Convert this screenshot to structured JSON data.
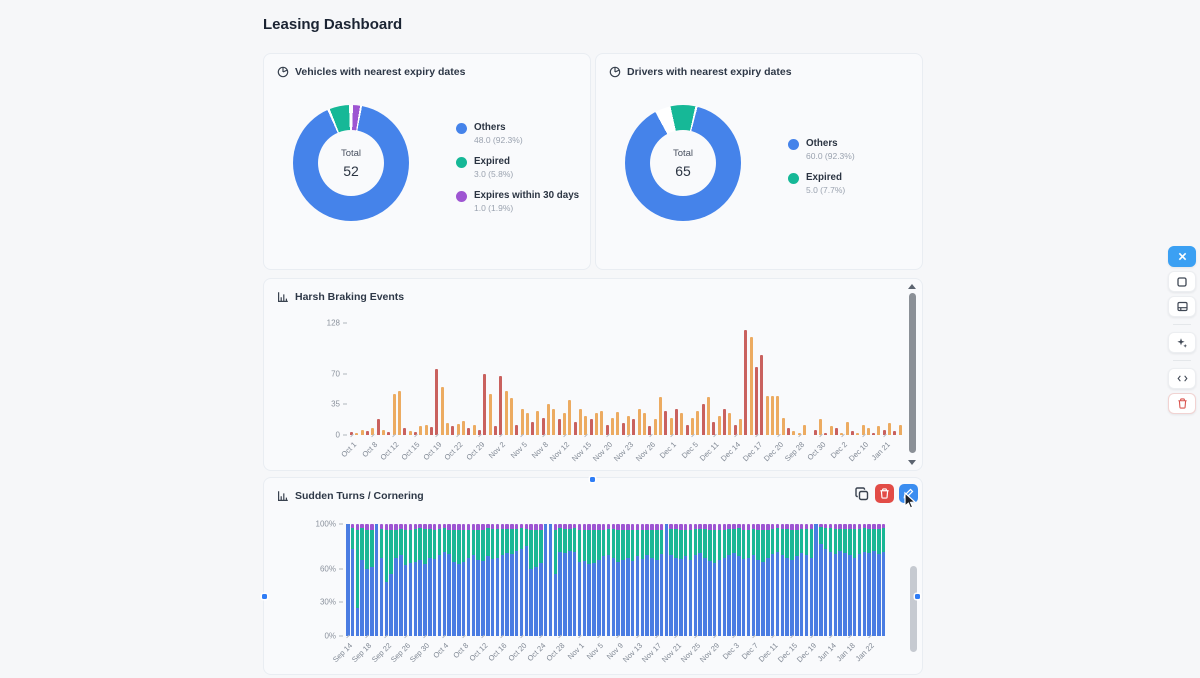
{
  "page": {
    "title": "Leasing Dashboard"
  },
  "cards": {
    "vehicles": {
      "title": "Vehicles with nearest expiry dates",
      "chart_data": {
        "type": "pie",
        "total_label": "Total",
        "total": "52",
        "slices": [
          {
            "label": "Others",
            "value": 48.0,
            "pct": 92.3,
            "value_text": "48.0 (92.3%)",
            "color": "#4583ea"
          },
          {
            "label": "Expired",
            "value": 3.0,
            "pct": 5.8,
            "value_text": "3.0 (5.8%)",
            "color": "#16b897"
          },
          {
            "label": "Expires within 30 days",
            "value": 1.0,
            "pct": 1.9,
            "value_text": "1.0 (1.9%)",
            "color": "#9e55d2"
          }
        ],
        "from_deg": 0,
        "segments": [
          {
            "color": "#9e55d2",
            "a0": 2,
            "a1": 9
          },
          {
            "color": "#4583ea",
            "a0": 11,
            "a1": 336
          },
          {
            "color": "#16b897",
            "a0": 338.5,
            "a1": 358
          }
        ]
      }
    },
    "drivers": {
      "title": "Drivers with nearest expiry dates",
      "chart_data": {
        "type": "pie",
        "total_label": "Total",
        "total": "65",
        "slices": [
          {
            "label": "Others",
            "value": 60.0,
            "pct": 92.3,
            "value_text": "60.0 (92.3%)",
            "color": "#4583ea"
          },
          {
            "label": "Expired",
            "value": 5.0,
            "pct": 7.7,
            "value_text": "5.0 (7.7%)",
            "color": "#16b897"
          }
        ],
        "from_deg": -14,
        "segments": [
          {
            "color": "#16b897",
            "a0": 1.5,
            "a1": 26.3
          },
          {
            "color": "#4583ea",
            "a0": 28.5,
            "a1": 345.5
          }
        ]
      }
    },
    "harsh_braking": {
      "title": "Harsh Braking Events",
      "chart_data": {
        "type": "bar",
        "ymax": 128,
        "yticks": [
          {
            "v": 0,
            "label": "0"
          },
          {
            "v": 35,
            "label": "35"
          },
          {
            "v": 70,
            "label": "70"
          },
          {
            "v": 128,
            "label": "128"
          }
        ],
        "colors": [
          "#c9615e",
          "#ecab61"
        ],
        "color_names": [
          "red",
          "orange"
        ],
        "label_every": 4,
        "labels": [
          "Oct 1",
          "Oct 8",
          "Oct 12",
          "Oct 15",
          "Oct 19",
          "Oct 22",
          "Oct 29",
          "Nov 2",
          "Nov 5",
          "Nov 8",
          "Nov 12",
          "Nov 15",
          "Nov 20",
          "Nov 23",
          "Nov 26",
          "Dec 1",
          "Dec 5",
          "Dec 11",
          "Dec 14",
          "Dec 17",
          "Dec 20",
          "Sep 28",
          "Oct 30",
          "Dec 2",
          "Dec 10",
          "Jan 21"
        ],
        "bars": [
          [
            4,
            0
          ],
          [
            2,
            1
          ],
          [
            6,
            1
          ],
          [
            5,
            0
          ],
          [
            8,
            1
          ],
          [
            18,
            0
          ],
          [
            6,
            1
          ],
          [
            4,
            0
          ],
          [
            47,
            1
          ],
          [
            50,
            1
          ],
          [
            8,
            0
          ],
          [
            5,
            1
          ],
          [
            3,
            0
          ],
          [
            10,
            1
          ],
          [
            12,
            1
          ],
          [
            9,
            0
          ],
          [
            75,
            0
          ],
          [
            55,
            1
          ],
          [
            14,
            1
          ],
          [
            10,
            0
          ],
          [
            13,
            1
          ],
          [
            16,
            1
          ],
          [
            8,
            0
          ],
          [
            12,
            1
          ],
          [
            6,
            0
          ],
          [
            70,
            0
          ],
          [
            47,
            1
          ],
          [
            10,
            0
          ],
          [
            68,
            0
          ],
          [
            50,
            1
          ],
          [
            42,
            1
          ],
          [
            12,
            0
          ],
          [
            30,
            1
          ],
          [
            25,
            1
          ],
          [
            15,
            0
          ],
          [
            28,
            1
          ],
          [
            20,
            0
          ],
          [
            35,
            1
          ],
          [
            30,
            1
          ],
          [
            18,
            0
          ],
          [
            25,
            1
          ],
          [
            40,
            1
          ],
          [
            15,
            0
          ],
          [
            30,
            1
          ],
          [
            22,
            1
          ],
          [
            18,
            0
          ],
          [
            25,
            1
          ],
          [
            28,
            1
          ],
          [
            12,
            0
          ],
          [
            20,
            1
          ],
          [
            26,
            1
          ],
          [
            14,
            0
          ],
          [
            22,
            1
          ],
          [
            18,
            0
          ],
          [
            30,
            1
          ],
          [
            25,
            1
          ],
          [
            10,
            0
          ],
          [
            18,
            1
          ],
          [
            44,
            1
          ],
          [
            28,
            0
          ],
          [
            20,
            1
          ],
          [
            30,
            0
          ],
          [
            25,
            1
          ],
          [
            12,
            0
          ],
          [
            20,
            1
          ],
          [
            28,
            1
          ],
          [
            35,
            0
          ],
          [
            44,
            1
          ],
          [
            15,
            0
          ],
          [
            22,
            1
          ],
          [
            30,
            0
          ],
          [
            25,
            1
          ],
          [
            12,
            0
          ],
          [
            18,
            1
          ],
          [
            120,
            0
          ],
          [
            112,
            1
          ],
          [
            78,
            0
          ],
          [
            92,
            0
          ],
          [
            45,
            1
          ],
          [
            45,
            1
          ],
          [
            45,
            1
          ],
          [
            20,
            1
          ],
          [
            8,
            0
          ],
          [
            5,
            1
          ],
          [
            2,
            1
          ],
          [
            12,
            1
          ],
          [
            0,
            1
          ],
          [
            6,
            0
          ],
          [
            18,
            1
          ],
          [
            2,
            0
          ],
          [
            10,
            1
          ],
          [
            8,
            0
          ],
          [
            2,
            1
          ],
          [
            15,
            1
          ],
          [
            5,
            0
          ],
          [
            2,
            1
          ],
          [
            12,
            1
          ],
          [
            8,
            1
          ],
          [
            2,
            0
          ],
          [
            10,
            1
          ],
          [
            6,
            0
          ],
          [
            14,
            1
          ],
          [
            5,
            0
          ],
          [
            12,
            1
          ]
        ]
      }
    },
    "sudden_turns": {
      "title": "Sudden Turns / Cornering",
      "chart_data": {
        "type": "stacked-bar-100",
        "ymax": 100,
        "yticks": [
          {
            "v": 0,
            "label": "0%"
          },
          {
            "v": 30,
            "label": "30%"
          },
          {
            "v": 60,
            "label": "60%"
          },
          {
            "v": 100,
            "label": "100%"
          }
        ],
        "colors": [
          "#4a7ce2",
          "#19b795",
          "#9e55d2"
        ],
        "color_names": [
          "blue",
          "teal",
          "purple"
        ],
        "label_every": 4,
        "labels": [
          "Sep 14",
          "Sep 18",
          "Sep 22",
          "Sep 26",
          "Sep 30",
          "Oct 4",
          "Oct 8",
          "Oct 12",
          "Oct 16",
          "Oct 20",
          "Oct 24",
          "Oct 28",
          "Nov 1",
          "Nov 5",
          "Nov 9",
          "Nov 13",
          "Nov 17",
          "Nov 21",
          "Nov 25",
          "Nov 29",
          "Dec 3",
          "Dec 7",
          "Dec 11",
          "Dec 15",
          "Dec 19",
          "Jun 14",
          "Jan 18",
          "Jan 22"
        ],
        "bars": [
          [
            100,
            0,
            0
          ],
          [
            78,
            18,
            4
          ],
          [
            25,
            70,
            5
          ],
          [
            68,
            28,
            4
          ],
          [
            60,
            35,
            5
          ],
          [
            62,
            33,
            5
          ],
          [
            100,
            0,
            0
          ],
          [
            70,
            26,
            4
          ],
          [
            48,
            47,
            5
          ],
          [
            55,
            40,
            5
          ],
          [
            70,
            25,
            5
          ],
          [
            72,
            24,
            4
          ],
          [
            63,
            32,
            5
          ],
          [
            65,
            30,
            5
          ],
          [
            66,
            30,
            4
          ],
          [
            68,
            28,
            4
          ],
          [
            64,
            32,
            4
          ],
          [
            70,
            26,
            4
          ],
          [
            69,
            26,
            5
          ],
          [
            72,
            24,
            4
          ],
          [
            75,
            21,
            4
          ],
          [
            73,
            22,
            5
          ],
          [
            66,
            29,
            5
          ],
          [
            64,
            31,
            5
          ],
          [
            66,
            29,
            5
          ],
          [
            70,
            25,
            5
          ],
          [
            72,
            23,
            5
          ],
          [
            68,
            27,
            5
          ],
          [
            67,
            28,
            5
          ],
          [
            71,
            25,
            4
          ],
          [
            69,
            27,
            4
          ],
          [
            70,
            26,
            4
          ],
          [
            72,
            24,
            4
          ],
          [
            74,
            22,
            4
          ],
          [
            73,
            23,
            4
          ],
          [
            76,
            20,
            4
          ],
          [
            78,
            18,
            4
          ],
          [
            80,
            16,
            4
          ],
          [
            60,
            35,
            5
          ],
          [
            62,
            33,
            5
          ],
          [
            65,
            30,
            5
          ],
          [
            100,
            0,
            0
          ],
          [
            100,
            0,
            0
          ],
          [
            55,
            40,
            5
          ],
          [
            75,
            21,
            4
          ],
          [
            74,
            22,
            4
          ],
          [
            76,
            20,
            4
          ],
          [
            75,
            21,
            4
          ],
          [
            66,
            29,
            5
          ],
          [
            67,
            28,
            5
          ],
          [
            64,
            31,
            5
          ],
          [
            65,
            30,
            5
          ],
          [
            68,
            27,
            5
          ],
          [
            71,
            24,
            5
          ],
          [
            72,
            24,
            4
          ],
          [
            70,
            26,
            4
          ],
          [
            66,
            29,
            5
          ],
          [
            68,
            27,
            5
          ],
          [
            70,
            25,
            5
          ],
          [
            67,
            28,
            5
          ],
          [
            71,
            24,
            5
          ],
          [
            69,
            26,
            5
          ],
          [
            72,
            23,
            5
          ],
          [
            70,
            25,
            5
          ],
          [
            68,
            27,
            5
          ],
          [
            73,
            22,
            5
          ],
          [
            100,
            0,
            0
          ],
          [
            72,
            24,
            4
          ],
          [
            70,
            26,
            4
          ],
          [
            69,
            26,
            5
          ],
          [
            71,
            24,
            5
          ],
          [
            68,
            27,
            5
          ],
          [
            72,
            24,
            4
          ],
          [
            74,
            22,
            4
          ],
          [
            70,
            26,
            4
          ],
          [
            67,
            28,
            5
          ],
          [
            65,
            30,
            5
          ],
          [
            68,
            27,
            5
          ],
          [
            70,
            25,
            5
          ],
          [
            72,
            24,
            4
          ],
          [
            74,
            22,
            4
          ],
          [
            71,
            25,
            4
          ],
          [
            69,
            26,
            5
          ],
          [
            70,
            25,
            5
          ],
          [
            72,
            24,
            4
          ],
          [
            68,
            27,
            5
          ],
          [
            66,
            29,
            5
          ],
          [
            70,
            25,
            5
          ],
          [
            73,
            23,
            4
          ],
          [
            75,
            21,
            4
          ],
          [
            72,
            24,
            4
          ],
          [
            70,
            26,
            4
          ],
          [
            68,
            27,
            5
          ],
          [
            71,
            24,
            5
          ],
          [
            74,
            22,
            4
          ],
          [
            72,
            24,
            4
          ],
          [
            70,
            26,
            4
          ],
          [
            100,
            0,
            0
          ],
          [
            82,
            15,
            3
          ],
          [
            78,
            18,
            4
          ],
          [
            75,
            21,
            4
          ],
          [
            73,
            23,
            4
          ],
          [
            76,
            20,
            4
          ],
          [
            74,
            22,
            4
          ],
          [
            72,
            24,
            4
          ],
          [
            70,
            26,
            4
          ],
          [
            73,
            23,
            4
          ],
          [
            75,
            21,
            4
          ],
          [
            74,
            22,
            4
          ],
          [
            76,
            20,
            4
          ],
          [
            73,
            23,
            4
          ],
          [
            75,
            21,
            4
          ]
        ]
      }
    }
  },
  "widget_toolbar": {
    "buttons": [
      "duplicate",
      "delete",
      "edit"
    ]
  },
  "floating_toolbar": {
    "buttons": [
      "close",
      "select",
      "insert-card",
      "ai-sparkles",
      "code-view",
      "delete"
    ]
  },
  "ui_colors": {
    "accent_blue": "#3b8df0",
    "danger_red": "#e24c47",
    "handle_blue": "#2f7df6",
    "card_background": "#f9fafc",
    "page_background": "#f6f7f9"
  }
}
